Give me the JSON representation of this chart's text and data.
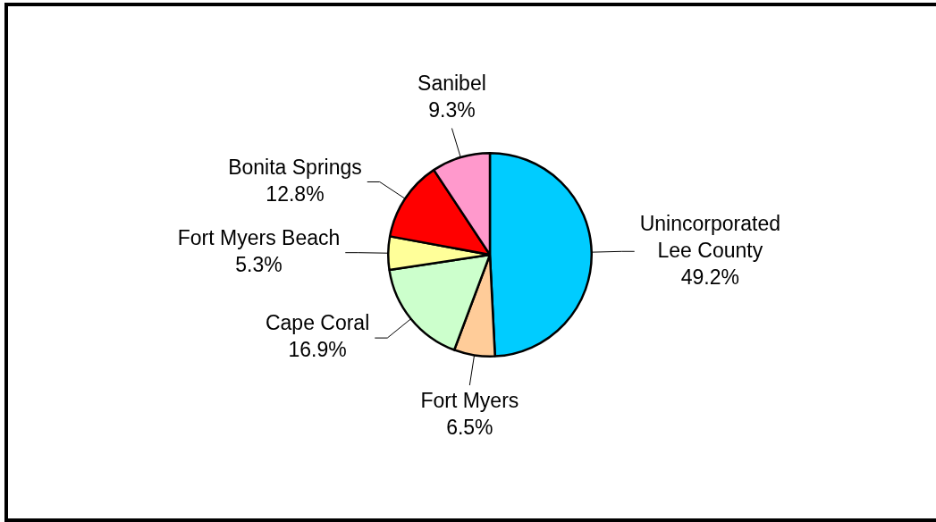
{
  "chart_data": {
    "type": "pie",
    "categories": [
      "Unincorporated Lee County",
      "Fort Myers",
      "Cape Coral",
      "Fort Myers Beach",
      "Bonita Springs",
      "Sanibel"
    ],
    "values": [
      49.2,
      6.5,
      16.9,
      5.3,
      12.8,
      9.3
    ],
    "value_labels": [
      "49.2%",
      "6.5%",
      "16.9%",
      "5.3%",
      "12.8%",
      "9.3%"
    ],
    "colors": [
      "#00ccff",
      "#ffcc99",
      "#ccffcc",
      "#ffff99",
      "#ff0000",
      "#ff99cc"
    ],
    "legend": false
  }
}
